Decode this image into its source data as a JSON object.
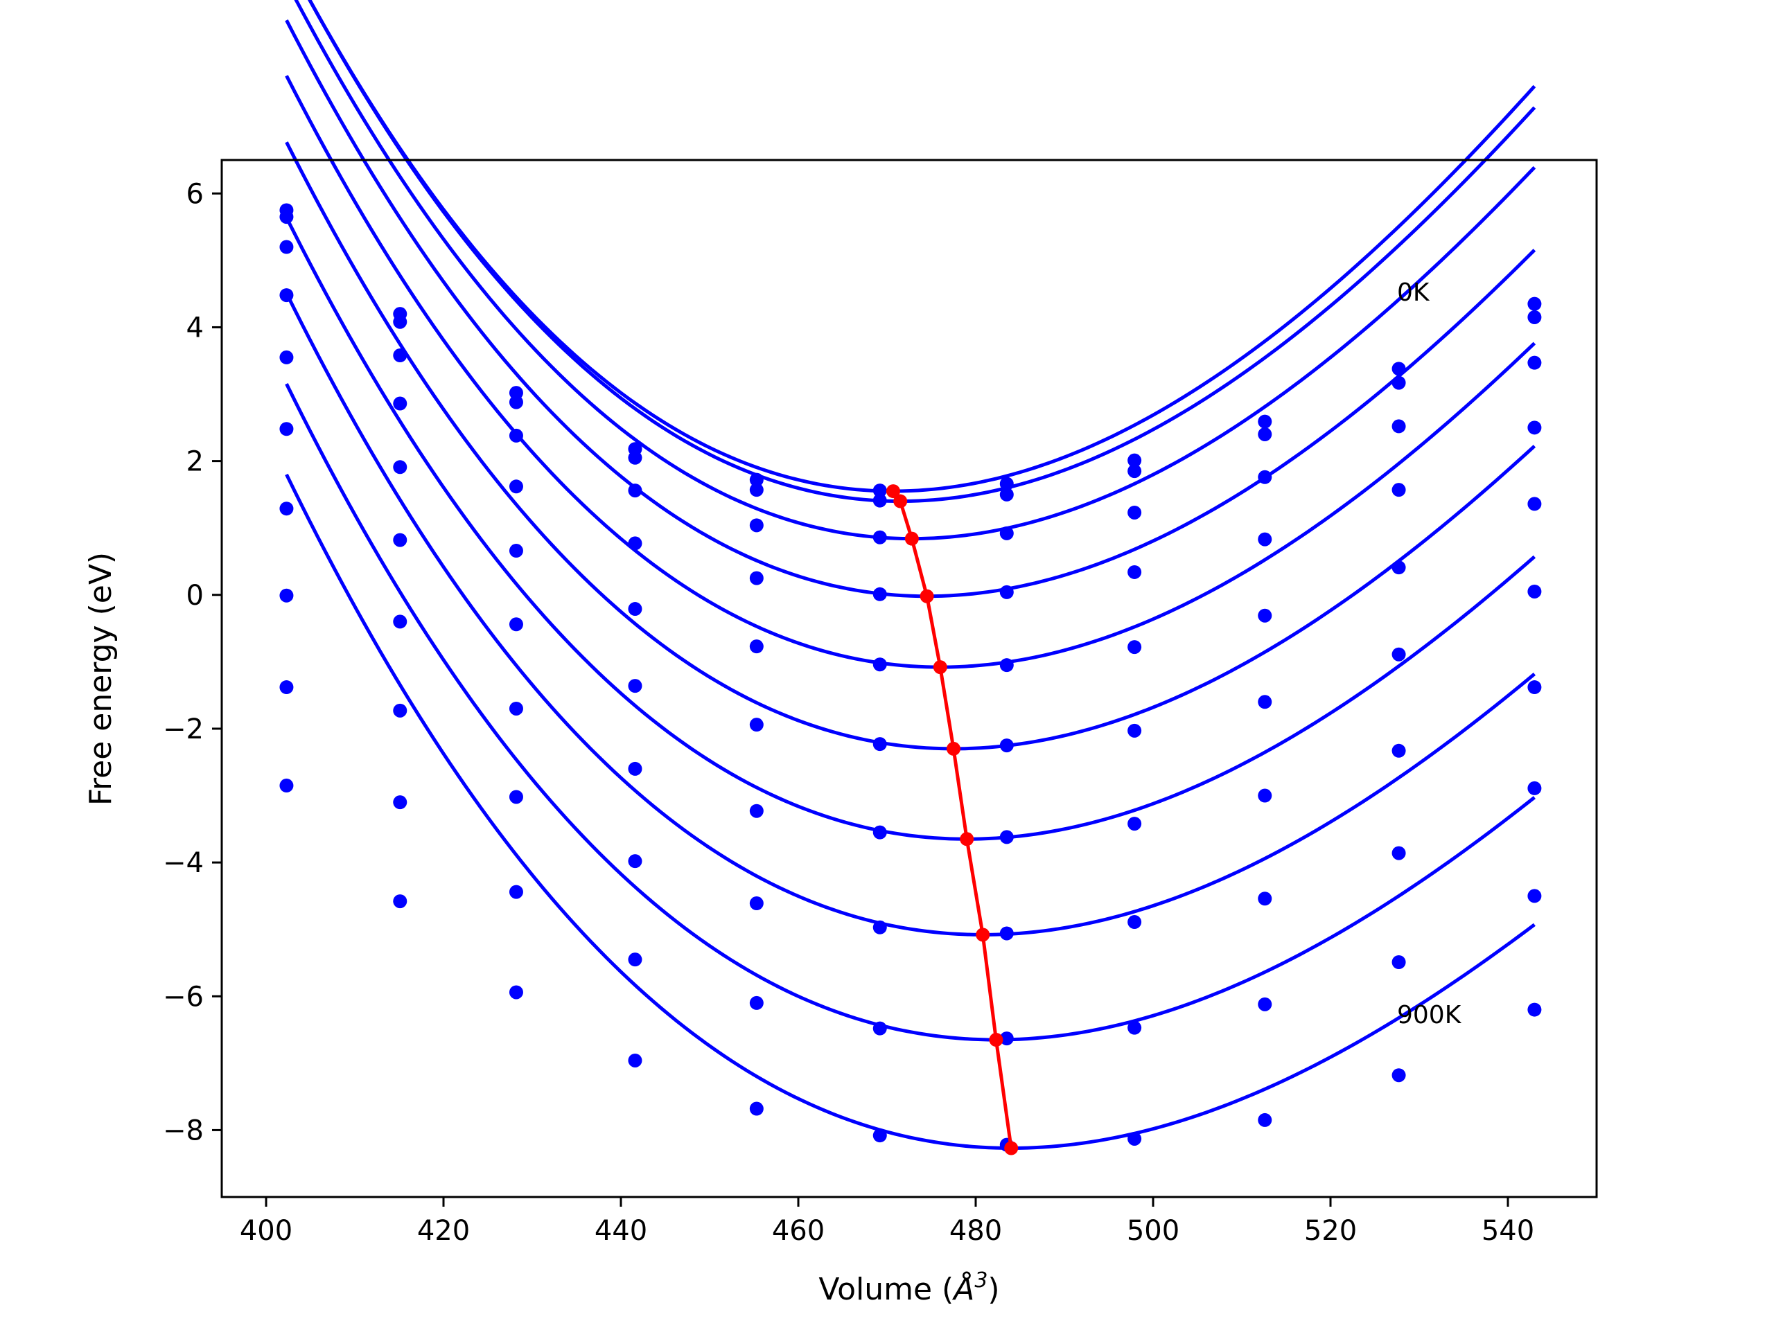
{
  "chart_data": {
    "type": "line",
    "xlabel": "Volume (",
    "xlabel_symbol": "Å",
    "xlabel_exp": "3",
    "xlabel_close": ")",
    "ylabel": "Free energy (eV)",
    "xlim": [
      395,
      550
    ],
    "ylim": [
      -9.0,
      6.5
    ],
    "xticks": [
      400,
      420,
      440,
      460,
      480,
      500,
      520,
      540
    ],
    "yticks": [
      6,
      4,
      2,
      0,
      -2,
      -4,
      -6,
      -8
    ],
    "ytick_labels": [
      "6",
      "4",
      "2",
      "0",
      "−2",
      "−4",
      "−6",
      "−8"
    ],
    "grid": false,
    "legend": "none",
    "annotations": [
      {
        "text": "0K",
        "x": 527.5,
        "y": 4.4
      },
      {
        "text": "900K",
        "x": 527.5,
        "y": -6.4
      }
    ],
    "colors": {
      "curves": "#0000ff",
      "minima": "#ff0000",
      "frame": "#000000"
    },
    "x": [
      402.3,
      415.1,
      428.2,
      441.6,
      455.3,
      469.2,
      483.5,
      497.9,
      512.6,
      527.7,
      543.0
    ],
    "series": [
      {
        "values": [
          5.75,
          4.2,
          3.02,
          2.18,
          1.72,
          1.56,
          1.66,
          2.01,
          2.59,
          3.38,
          4.35
        ],
        "fit": {
          "vmin": 470.7,
          "emin": 1.55,
          "b": 0.00144,
          "c": -3.9e-06
        }
      },
      {
        "values": [
          5.65,
          4.08,
          2.88,
          2.05,
          1.57,
          1.41,
          1.5,
          1.85,
          2.4,
          3.17,
          4.15
        ],
        "fit": {
          "vmin": 471.5,
          "emin": 1.4,
          "b": 0.00143,
          "c": -3.9e-06
        }
      },
      {
        "values": [
          5.2,
          3.58,
          2.38,
          1.56,
          1.04,
          0.86,
          0.92,
          1.23,
          1.76,
          2.52,
          3.47
        ],
        "fit": {
          "vmin": 472.8,
          "emin": 0.84,
          "b": 0.0014,
          "c": -3.9e-06
        }
      },
      {
        "values": [
          4.48,
          2.86,
          1.62,
          0.77,
          0.25,
          0.01,
          0.04,
          0.34,
          0.83,
          1.57,
          2.5
        ],
        "fit": {
          "vmin": 474.5,
          "emin": -0.02,
          "b": 0.00137,
          "c": -3.9e-06
        }
      },
      {
        "values": [
          3.55,
          1.91,
          0.66,
          -0.21,
          -0.77,
          -1.04,
          -1.05,
          -0.78,
          -0.31,
          0.41,
          1.36
        ],
        "fit": {
          "vmin": 476.0,
          "emin": -1.08,
          "b": 0.00134,
          "c": -3.9e-06
        }
      },
      {
        "values": [
          2.48,
          0.82,
          -0.44,
          -1.36,
          -1.94,
          -2.23,
          -2.25,
          -2.03,
          -1.6,
          -0.89,
          0.05
        ],
        "fit": {
          "vmin": 477.5,
          "emin": -2.3,
          "b": 0.00131,
          "c": -3.9e-06
        }
      },
      {
        "values": [
          1.29,
          -0.4,
          -1.7,
          -2.6,
          -3.23,
          -3.55,
          -3.62,
          -3.42,
          -3.0,
          -2.33,
          -1.38
        ],
        "fit": {
          "vmin": 479.0,
          "emin": -3.65,
          "b": 0.00128,
          "c": -3.9e-06
        }
      },
      {
        "values": [
          -0.01,
          -1.73,
          -3.02,
          -3.98,
          -4.61,
          -4.97,
          -5.06,
          -4.89,
          -4.54,
          -3.86,
          -2.89
        ],
        "fit": {
          "vmin": 480.8,
          "emin": -5.08,
          "b": 0.00125,
          "c": -3.9e-06
        }
      },
      {
        "values": [
          -1.38,
          -3.1,
          -4.44,
          -5.45,
          -6.1,
          -6.48,
          -6.63,
          -6.47,
          -6.12,
          -5.49,
          -4.5
        ],
        "fit": {
          "vmin": 482.3,
          "emin": -6.65,
          "b": 0.00122,
          "c": -3.9e-06
        }
      },
      {
        "values": [
          -2.85,
          -4.58,
          -5.94,
          -6.96,
          -7.68,
          -8.08,
          -8.22,
          -8.13,
          -7.85,
          -7.18,
          -6.2
        ],
        "fit": {
          "vmin": 484.0,
          "emin": -8.27,
          "b": 0.00119,
          "c": -3.9e-06
        }
      }
    ],
    "minima": {
      "x": [
        470.7,
        471.5,
        472.8,
        474.5,
        476.0,
        477.5,
        479.0,
        480.8,
        482.3,
        484.0
      ],
      "y": [
        1.55,
        1.4,
        0.84,
        -0.02,
        -1.08,
        -2.3,
        -3.65,
        -5.08,
        -6.65,
        -8.27
      ]
    }
  }
}
